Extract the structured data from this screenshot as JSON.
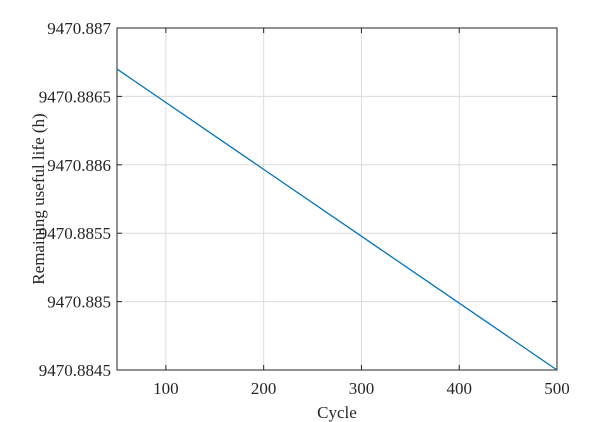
{
  "chart_data": {
    "type": "line",
    "title": "",
    "xlabel": "Cycle",
    "ylabel": "Remaining useful life (h)",
    "xlim": [
      50,
      500
    ],
    "ylim": [
      9470.8845,
      9470.887
    ],
    "xticks": [
      100,
      200,
      300,
      400,
      500
    ],
    "xtick_labels": [
      "100",
      "200",
      "300",
      "400",
      "500"
    ],
    "yticks": [
      9470.8845,
      9470.885,
      9470.8855,
      9470.886,
      9470.8865,
      9470.887
    ],
    "ytick_labels": [
      "9470.8845",
      "9470.885",
      "9470.8855",
      "9470.886",
      "9470.8865",
      "9470.887"
    ],
    "grid": true,
    "legend": "none",
    "series": [
      {
        "color": "#0072bd",
        "x": [
          50,
          500
        ],
        "y": [
          9470.8867,
          9470.8845
        ]
      }
    ]
  }
}
